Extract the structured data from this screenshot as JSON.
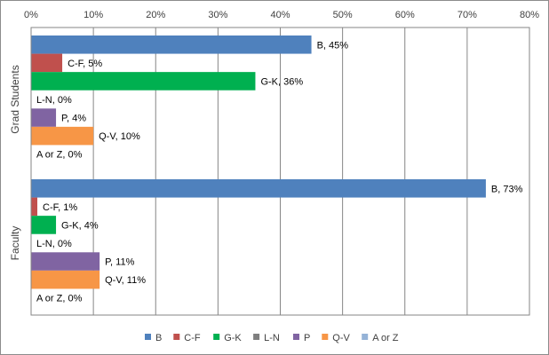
{
  "chart_data": {
    "type": "bar",
    "orientation": "horizontal",
    "title": "",
    "xlabel": "",
    "ylabel": "",
    "xlim": [
      0,
      80
    ],
    "x_ticks": [
      "0%",
      "10%",
      "20%",
      "30%",
      "40%",
      "50%",
      "60%",
      "70%",
      "80%"
    ],
    "grid": true,
    "legend_position": "bottom",
    "groups": [
      "Grad Students",
      "Faculty"
    ],
    "series": [
      {
        "name": "B",
        "color": "#4F81BD",
        "values": [
          45,
          73
        ]
      },
      {
        "name": "C-F",
        "color": "#C0504D",
        "values": [
          5,
          1
        ]
      },
      {
        "name": "G-K",
        "color": "#00B050",
        "values": [
          36,
          4
        ]
      },
      {
        "name": "L-N",
        "color": "#7F7F7F",
        "values": [
          0,
          0
        ]
      },
      {
        "name": "P",
        "color": "#8064A2",
        "values": [
          4,
          11
        ]
      },
      {
        "name": "Q-V",
        "color": "#F79646",
        "values": [
          10,
          11
        ]
      },
      {
        "name": "A or Z",
        "color": "#95B3D7",
        "values": [
          0,
          0
        ]
      }
    ],
    "data_labels": [
      [
        "B, 45%",
        "C-F, 5%",
        "G-K, 36%",
        "L-N, 0%",
        "P, 4%",
        "Q-V, 10%",
        "A or Z, 0%"
      ],
      [
        "B, 73%",
        "C-F, 1%",
        "G-K, 4%",
        "L-N, 0%",
        "P, 11%",
        "Q-V, 11%",
        "A or Z, 0%"
      ]
    ]
  }
}
